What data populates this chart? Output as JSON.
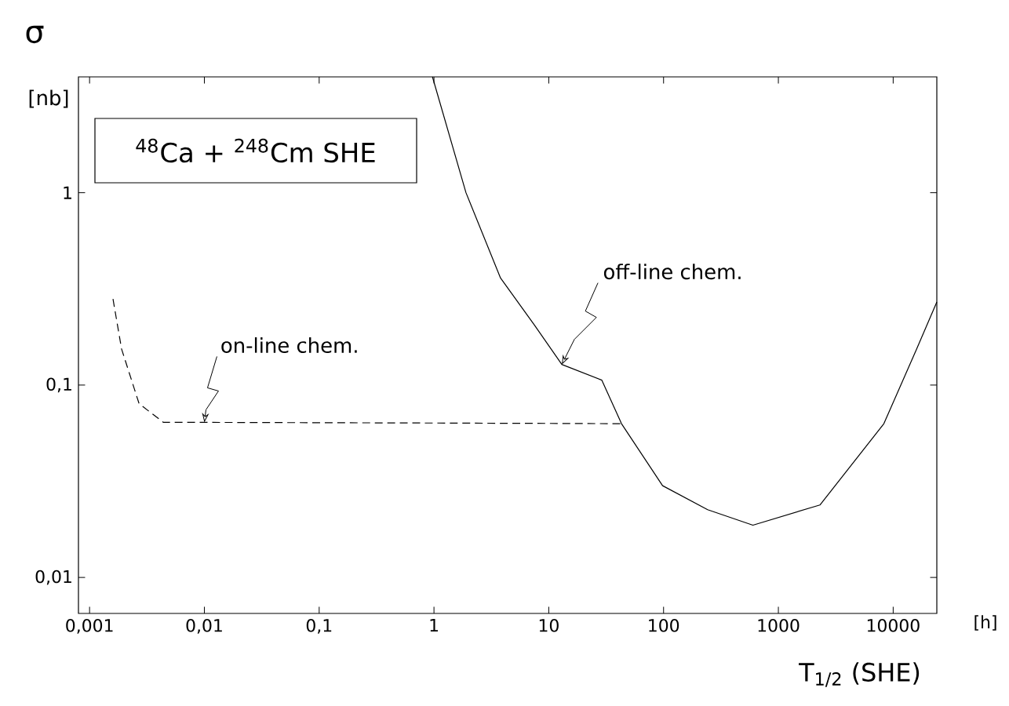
{
  "chart_data": {
    "type": "line",
    "xlabel": "T$_{1/2}$  (SHE)",
    "ylabel": "σ",
    "annotations": [
      "$^{48}$Ca + $^{248}$Cm      SHE",
      "[nb]",
      "[h]",
      {
        "text": "on-line chem.",
        "x": 0.01,
        "y": 0.064
      },
      {
        "text": "off-line chem.",
        "x": 13,
        "y": 0.128
      }
    ],
    "log": "xy",
    "grid": false,
    "marker": "none",
    "xlim": [
      0.0008,
      24000
    ],
    "ylim": [
      0.0065,
      4
    ],
    "xticks": [
      {
        "value": 0.001,
        "label": "0,001"
      },
      {
        "value": 0.01,
        "label": "0,01"
      },
      {
        "value": 0.1,
        "label": "0,1"
      },
      1,
      10,
      100,
      1000,
      10000
    ],
    "yticks": [
      {
        "value": 0.01,
        "label": "0,01"
      },
      {
        "value": 0.1,
        "label": "0,1"
      },
      1
    ],
    "series": [
      {
        "color": "#000000",
        "line_style": "dashed",
        "x": [
          0.0016,
          0.0019,
          0.0027,
          0.0044,
          0.01,
          1,
          43
        ],
        "values": [
          0.28,
          0.154,
          0.08,
          0.064,
          0.064,
          0.0635,
          0.063
        ]
      },
      {
        "color": "#000000",
        "line_style": "solid",
        "x": [
          0.97,
          1.9,
          3.8,
          7.5,
          13,
          29,
          43,
          98,
          242,
          600,
          2300,
          8300,
          16000,
          24000
        ],
        "values": [
          4,
          1,
          0.36,
          0.205,
          0.128,
          0.106,
          0.063,
          0.03,
          0.0225,
          0.0187,
          0.0238,
          0.063,
          0.154,
          0.27
        ]
      }
    ]
  }
}
